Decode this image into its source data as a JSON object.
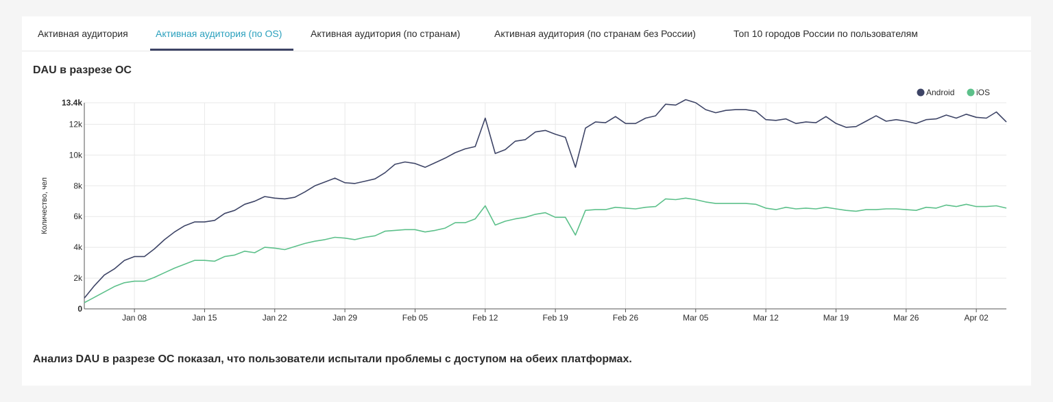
{
  "tabs": [
    {
      "label": "Активная аудитория"
    },
    {
      "label": "Активная аудитория (по OS)"
    },
    {
      "label": "Активная аудитория (по странам)"
    },
    {
      "label": "Активная аудитория (по странам без России)"
    },
    {
      "label": "Топ 10 городов России по пользователям"
    }
  ],
  "active_tab": 1,
  "chart_title": "DAU в разрезе ОС",
  "footer_text": "Анализ DAU в разрезе ОС показал, что пользователи испытали проблемы с доступом на обеих платформах.",
  "colors": {
    "android": "#3d4466",
    "ios": "#5cc08a",
    "accent": "#2aa0bd"
  },
  "chart_data": {
    "type": "line",
    "title": "DAU в разрезе ОС",
    "xlabel": "",
    "ylabel": "Количество, чел",
    "x_start": "Jan 03",
    "x_end": "Apr 07",
    "ylim": [
      0,
      13400
    ],
    "y_ticks": [
      {
        "value": 0,
        "label": "0"
      },
      {
        "value": 2000,
        "label": "2k"
      },
      {
        "value": 4000,
        "label": "4k"
      },
      {
        "value": 6000,
        "label": "6k"
      },
      {
        "value": 8000,
        "label": "8k"
      },
      {
        "value": 10000,
        "label": "10k"
      },
      {
        "value": 12000,
        "label": "12k"
      },
      {
        "value": 13400,
        "label": "13.4k"
      }
    ],
    "x_ticks": [
      "Jan 08",
      "Jan 15",
      "Jan 22",
      "Jan 29",
      "Feb 05",
      "Feb 12",
      "Feb 19",
      "Feb 26",
      "Mar 05",
      "Mar 12",
      "Mar 19",
      "Mar 26",
      "Apr 02"
    ],
    "grid": true,
    "legend_position": "top-right",
    "series": [
      {
        "name": "Android",
        "color": "#3d4466",
        "values": [
          700,
          1500,
          2200,
          2600,
          3150,
          3400,
          3400,
          3900,
          4500,
          5000,
          5400,
          5650,
          5650,
          5750,
          6200,
          6400,
          6800,
          7000,
          7300,
          7200,
          7150,
          7250,
          7600,
          8000,
          8250,
          8500,
          8200,
          8150,
          8300,
          8450,
          8850,
          9400,
          9550,
          9450,
          9200,
          9500,
          9800,
          10150,
          10400,
          10550,
          12400,
          10100,
          10350,
          10900,
          11000,
          11500,
          11600,
          11350,
          11150,
          9200,
          11750,
          12150,
          12100,
          12500,
          12050,
          12050,
          12400,
          12550,
          13300,
          13250,
          13600,
          13400,
          12950,
          12750,
          12900,
          12950,
          12950,
          12850,
          12300,
          12250,
          12350,
          12050,
          12150,
          12100,
          12500,
          12050,
          11800,
          11850,
          12200,
          12550,
          12200,
          12300,
          12200,
          12050,
          12300,
          12350,
          12600,
          12400,
          12650,
          12450,
          12400,
          12800,
          12150
        ]
      },
      {
        "name": "iOS",
        "color": "#5cc08a",
        "values": [
          400,
          750,
          1100,
          1450,
          1700,
          1800,
          1800,
          2050,
          2350,
          2650,
          2900,
          3150,
          3150,
          3100,
          3400,
          3500,
          3750,
          3650,
          4000,
          3950,
          3850,
          4050,
          4250,
          4400,
          4500,
          4650,
          4600,
          4500,
          4650,
          4750,
          5050,
          5100,
          5150,
          5150,
          5000,
          5100,
          5250,
          5600,
          5600,
          5850,
          6700,
          5450,
          5700,
          5850,
          5950,
          6150,
          6250,
          5950,
          5950,
          4800,
          6400,
          6450,
          6450,
          6600,
          6550,
          6500,
          6600,
          6650,
          7150,
          7100,
          7200,
          7100,
          6950,
          6850,
          6850,
          6850,
          6850,
          6800,
          6550,
          6450,
          6600,
          6500,
          6550,
          6500,
          6600,
          6500,
          6400,
          6350,
          6450,
          6450,
          6500,
          6500,
          6450,
          6400,
          6600,
          6550,
          6750,
          6650,
          6800,
          6650,
          6650,
          6700,
          6550
        ]
      }
    ]
  }
}
